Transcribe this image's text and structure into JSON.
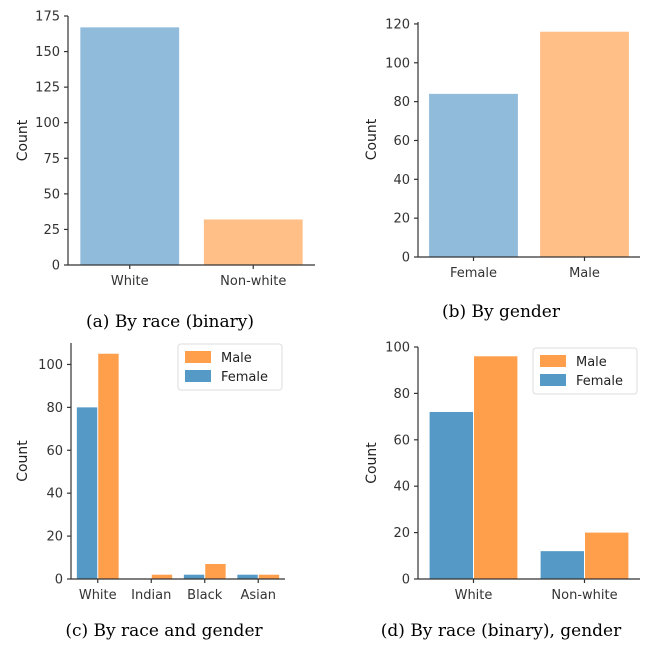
{
  "chart_data": [
    {
      "id": "a",
      "type": "bar",
      "caption": "(a) By race (binary)",
      "ylabel": "Count",
      "xlabel": "",
      "categories": [
        "White",
        "Non-white"
      ],
      "values": [
        167,
        32
      ],
      "colors": [
        "#90bbdb",
        "#ffbf87"
      ],
      "yticks": [
        0,
        25,
        50,
        75,
        100,
        125,
        150,
        175
      ],
      "ylim": [
        0,
        175
      ],
      "grid": false,
      "legend": null
    },
    {
      "id": "b",
      "type": "bar",
      "caption": "(b) By gender",
      "ylabel": "Count",
      "xlabel": "",
      "categories": [
        "Female",
        "Male"
      ],
      "values": [
        84,
        116
      ],
      "colors": [
        "#90bbdb",
        "#ffbf87"
      ],
      "yticks": [
        0,
        20,
        40,
        60,
        80,
        100,
        120
      ],
      "ylim": [
        0,
        121
      ],
      "grid": false,
      "legend": null
    },
    {
      "id": "c",
      "type": "bar",
      "caption": "(c) By race and gender",
      "ylabel": "Count",
      "xlabel": "",
      "categories": [
        "White",
        "Indian",
        "Black",
        "Asian"
      ],
      "series": [
        {
          "name": "Female",
          "color": "#5599c7",
          "values": [
            80,
            0,
            2,
            2
          ]
        },
        {
          "name": "Male",
          "color": "#ff9f4b",
          "values": [
            105,
            2,
            7,
            2
          ]
        }
      ],
      "yticks": [
        0,
        20,
        40,
        60,
        80,
        100
      ],
      "ylim": [
        0,
        110
      ],
      "grid": false,
      "legend": {
        "position": "top-right",
        "order": [
          "Male",
          "Female"
        ]
      }
    },
    {
      "id": "d",
      "type": "bar",
      "caption": "(d) By race (binary), gender",
      "ylabel": "Count",
      "xlabel": "",
      "categories": [
        "White",
        "Non-white"
      ],
      "series": [
        {
          "name": "Female",
          "color": "#5599c7",
          "values": [
            72,
            12
          ]
        },
        {
          "name": "Male",
          "color": "#ff9f4b",
          "values": [
            96,
            20
          ]
        }
      ],
      "yticks": [
        0,
        20,
        40,
        60,
        80,
        100
      ],
      "ylim": [
        0,
        100
      ],
      "grid": false,
      "legend": {
        "position": "top-right",
        "order": [
          "Male",
          "Female"
        ]
      }
    }
  ]
}
